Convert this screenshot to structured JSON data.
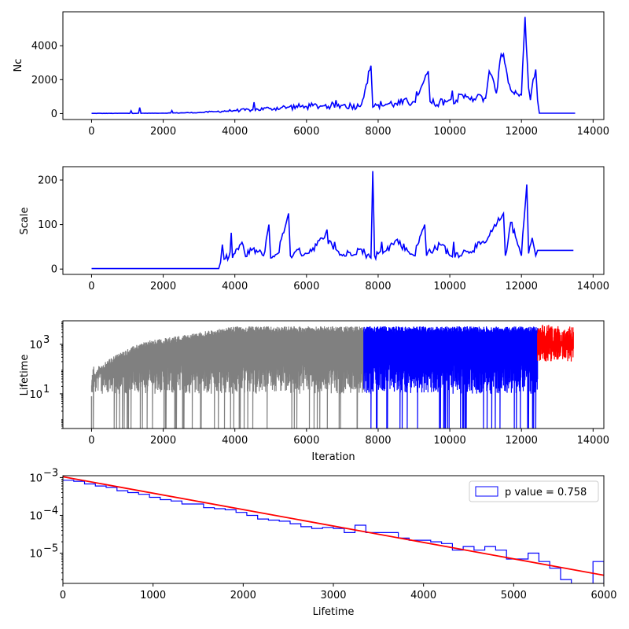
{
  "chart_data": [
    {
      "type": "line",
      "ylabel": "Nc",
      "xlim": [
        -800,
        14300
      ],
      "ylim": [
        -350,
        6000
      ],
      "xticks": [
        0,
        2000,
        4000,
        6000,
        8000,
        10000,
        12000,
        14000
      ],
      "yticks": [
        0,
        2000,
        4000
      ],
      "series": [
        {
          "color": "#0000ff",
          "x": [
            0,
            1000,
            2000,
            3000,
            3500,
            4000,
            4500,
            5000,
            5500,
            6000,
            6500,
            7000,
            7500,
            7800,
            7850,
            8000,
            8500,
            9000,
            9400,
            9450,
            9500,
            10000,
            10500,
            11000,
            11100,
            11300,
            11400,
            11500,
            11600,
            11700,
            12000,
            12100,
            12200,
            12250,
            12400,
            12450,
            12500,
            13500
          ],
          "y": [
            10,
            15,
            25,
            60,
            120,
            180,
            220,
            300,
            380,
            420,
            460,
            480,
            420,
            2820,
            380,
            520,
            600,
            700,
            2500,
            700,
            600,
            800,
            1000,
            900,
            2500,
            1200,
            3100,
            3500,
            2300,
            1400,
            1100,
            5700,
            1500,
            800,
            2600,
            800,
            20,
            20
          ]
        }
      ]
    },
    {
      "type": "line",
      "ylabel": "Scale",
      "xlim": [
        -800,
        14300
      ],
      "ylim": [
        -12,
        230
      ],
      "xticks": [
        0,
        2000,
        4000,
        6000,
        8000,
        10000,
        12000,
        14000
      ],
      "yticks": [
        0,
        100,
        200
      ],
      "series": [
        {
          "color": "#0000ff",
          "x": [
            0,
            3550,
            3600,
            3650,
            3700,
            4000,
            4200,
            4300,
            4500,
            4800,
            4950,
            5000,
            5200,
            5500,
            5550,
            5700,
            6000,
            6500,
            7000,
            7500,
            7800,
            7850,
            7900,
            8200,
            8500,
            9000,
            9300,
            9350,
            9400,
            9800,
            10000,
            10500,
            11000,
            11500,
            11550,
            11700,
            12000,
            12150,
            12200,
            12300,
            12400,
            12450,
            13450
          ],
          "y": [
            1,
            1,
            15,
            55,
            22,
            35,
            60,
            28,
            45,
            30,
            100,
            25,
            35,
            125,
            30,
            40,
            35,
            70,
            30,
            45,
            25,
            220,
            30,
            40,
            65,
            30,
            100,
            30,
            40,
            55,
            30,
            40,
            60,
            125,
            30,
            105,
            30,
            190,
            35,
            70,
            30,
            42,
            42
          ]
        }
      ]
    },
    {
      "type": "line",
      "ylabel": "Lifetime",
      "xlabel": "Iteration",
      "yscale": "log",
      "xlim": [
        -800,
        14300
      ],
      "ylim_log10": [
        -0.4,
        3.95
      ],
      "xticks": [
        0,
        2000,
        4000,
        6000,
        8000,
        10000,
        12000,
        14000
      ],
      "yticks": [
        "10^1",
        "10^3"
      ],
      "series": [
        {
          "color": "#808080",
          "x_range": [
            0,
            7600
          ]
        },
        {
          "color": "#0000ff",
          "x_range": [
            7600,
            12450
          ]
        },
        {
          "color": "#ff0000",
          "x_range": [
            12450,
            13450
          ]
        }
      ]
    },
    {
      "type": "histogram",
      "xlabel": "Lifetime",
      "yscale": "log",
      "xlim": [
        0,
        6000
      ],
      "ylim_log10": [
        -5.8,
        -2.95
      ],
      "xticks": [
        0,
        1000,
        2000,
        3000,
        4000,
        5000,
        6000
      ],
      "yticks": [
        "10^-5",
        "10^-4",
        "10^-3"
      ],
      "legend": "p value = 0.758",
      "legend_position": "top-right",
      "bin_width": 120,
      "counts": [
        0.00085,
        0.0008,
        0.00068,
        0.0006,
        0.00055,
        0.00045,
        0.0004,
        0.00036,
        0.0003,
        0.00026,
        0.00024,
        0.0002,
        0.0002,
        0.00016,
        0.00015,
        0.00014,
        0.00012,
        0.0001,
        8e-05,
        7.5e-05,
        7e-05,
        6e-05,
        5e-05,
        4.5e-05,
        4.8e-05,
        4.5e-05,
        3.5e-05,
        5.5e-05,
        3.5e-05,
        3.5e-05,
        3.5e-05,
        2.5e-05,
        2.2e-05,
        2.2e-05,
        2e-05,
        1.8e-05,
        1.2e-05,
        1.5e-05,
        1.2e-05,
        1.5e-05,
        1.2e-05,
        7e-06,
        7e-06,
        1e-05,
        6e-06,
        4e-06,
        2e-06,
        1e-06,
        1e-06,
        6e-06,
        1e-06
      ],
      "fit_line": {
        "color": "#ff0000",
        "x": [
          0,
          6000
        ],
        "y": [
          0.00105,
          2.6e-06
        ]
      },
      "hist_color": "#0000ff"
    }
  ]
}
